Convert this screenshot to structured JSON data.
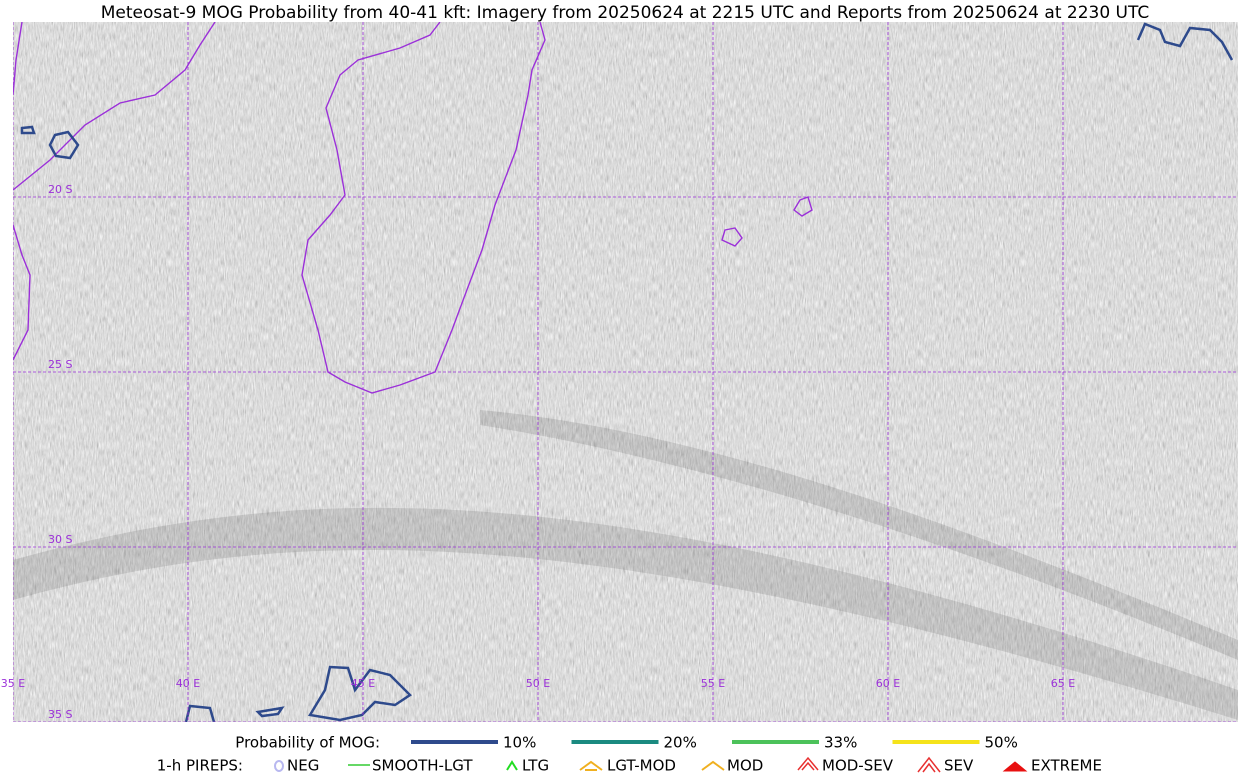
{
  "title": "Meteosat-9 MOG Probability from 40-41 kft: Imagery from 20250624 at 2215 UTC and Reports from 20250624 at 2230 UTC",
  "map": {
    "lon_labels": [
      "35 E",
      "40 E",
      "45 E",
      "50 E",
      "55 E",
      "60 E",
      "65 E"
    ],
    "lat_labels": [
      "20 S",
      "25 S",
      "30 S",
      "35 S"
    ],
    "grid_color": "#9b30d9",
    "coast_color": "#9b30d9"
  },
  "legend": {
    "probability": {
      "label": "Probability of MOG:",
      "items": [
        {
          "label": "10%",
          "color": "#2e4a8c"
        },
        {
          "label": "20%",
          "color": "#1a8a80"
        },
        {
          "label": "33%",
          "color": "#4cc25a"
        },
        {
          "label": "50%",
          "color": "#f5e31a"
        }
      ]
    },
    "pireps": {
      "label": "1-h PIREPS:",
      "items": [
        {
          "label": "NEG",
          "color": "#b8b8f0"
        },
        {
          "label": "SMOOTH-LGT",
          "color": "#33cc33"
        },
        {
          "label": "LTG",
          "color": "#22dd22"
        },
        {
          "label": "LGT-MOD",
          "color": "#f0b020"
        },
        {
          "label": "MOD",
          "color": "#f0b020"
        },
        {
          "label": "MOD-SEV",
          "color": "#e83030"
        },
        {
          "label": "SEV",
          "color": "#e83030"
        },
        {
          "label": "EXTREME",
          "color": "#e81010"
        }
      ]
    }
  }
}
